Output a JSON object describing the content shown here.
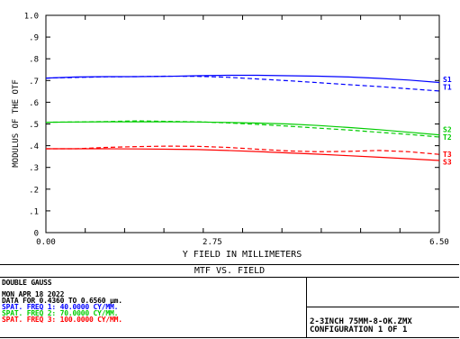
{
  "chart_data": {
    "type": "line",
    "title": "MTF VS. FIELD",
    "xlabel": "Y FIELD IN MILLIMETERS",
    "ylabel": "MODULUS OF THE OTF",
    "xlim": [
      0,
      6.5
    ],
    "ylim": [
      0,
      1.0
    ],
    "x_ticks": [
      "0.00",
      "2.75",
      "6.50"
    ],
    "y_ticks": [
      "0",
      ".1",
      ".2",
      ".3",
      ".4",
      ".5",
      ".6",
      ".7",
      ".8",
      ".9",
      "1.0"
    ],
    "grid": false,
    "series": [
      {
        "name": "S1",
        "color": "#0000ff",
        "dash": false,
        "x": [
          0,
          0.5,
          1.0,
          1.5,
          2.0,
          2.5,
          3.0,
          3.5,
          4.0,
          4.5,
          5.0,
          5.5,
          6.0,
          6.5
        ],
        "y": [
          0.711,
          0.716,
          0.718,
          0.718,
          0.719,
          0.722,
          0.724,
          0.724,
          0.722,
          0.72,
          0.716,
          0.71,
          0.702,
          0.691
        ]
      },
      {
        "name": "T1",
        "color": "#0000ff",
        "dash": true,
        "x": [
          0,
          0.5,
          1.0,
          1.5,
          2.0,
          2.5,
          3.0,
          3.5,
          4.0,
          4.5,
          5.0,
          5.5,
          6.0,
          6.5
        ],
        "y": [
          0.711,
          0.714,
          0.717,
          0.718,
          0.72,
          0.719,
          0.715,
          0.707,
          0.699,
          0.69,
          0.681,
          0.672,
          0.662,
          0.652
        ]
      },
      {
        "name": "S2",
        "color": "#00cc00",
        "dash": false,
        "x": [
          0,
          0.5,
          1.0,
          1.5,
          2.0,
          2.5,
          3.0,
          3.5,
          4.0,
          4.5,
          5.0,
          5.5,
          6.0,
          6.5
        ],
        "y": [
          0.508,
          0.509,
          0.51,
          0.51,
          0.51,
          0.509,
          0.507,
          0.504,
          0.5,
          0.493,
          0.484,
          0.474,
          0.462,
          0.45
        ]
      },
      {
        "name": "T2",
        "color": "#00cc00",
        "dash": true,
        "x": [
          0,
          0.5,
          1.0,
          1.5,
          2.0,
          2.5,
          3.0,
          3.5,
          4.0,
          4.5,
          5.0,
          5.5,
          6.0,
          6.5
        ],
        "y": [
          0.508,
          0.509,
          0.511,
          0.514,
          0.512,
          0.51,
          0.505,
          0.498,
          0.49,
          0.481,
          0.472,
          0.462,
          0.452,
          0.44
        ]
      },
      {
        "name": "T3",
        "color": "#ff0000",
        "dash": true,
        "x": [
          0,
          0.5,
          1.0,
          1.5,
          2.0,
          2.5,
          3.0,
          3.5,
          4.0,
          4.5,
          5.0,
          5.5,
          6.0,
          6.5
        ],
        "y": [
          0.386,
          0.386,
          0.392,
          0.396,
          0.398,
          0.397,
          0.392,
          0.384,
          0.376,
          0.372,
          0.374,
          0.378,
          0.372,
          0.36
        ]
      },
      {
        "name": "S3",
        "color": "#ff0000",
        "dash": false,
        "x": [
          0,
          0.5,
          1.0,
          1.5,
          2.0,
          2.5,
          3.0,
          3.5,
          4.0,
          4.5,
          5.0,
          5.5,
          6.0,
          6.5
        ],
        "y": [
          0.386,
          0.386,
          0.386,
          0.385,
          0.384,
          0.382,
          0.378,
          0.373,
          0.367,
          0.361,
          0.354,
          0.347,
          0.34,
          0.332
        ]
      }
    ],
    "series_labels": [
      {
        "text": "S1",
        "color": "#0000ff",
        "y": 0.705
      },
      {
        "text": "T1",
        "color": "#0000ff",
        "y": 0.67
      },
      {
        "text": "S2",
        "color": "#00cc00",
        "y": 0.475
      },
      {
        "text": "T2",
        "color": "#00cc00",
        "y": 0.44
      },
      {
        "text": "T3",
        "color": "#ff0000",
        "y": 0.36
      },
      {
        "text": "S3",
        "color": "#ff0000",
        "y": 0.325
      }
    ]
  },
  "footer": {
    "title": "MTF VS. FIELD",
    "lens_name": "DOUBLE GAUSS",
    "date": "MON APR 18 2022",
    "data_range": "DATA FOR 0.4360 TO 0.6560 μm.",
    "freq1": "SPAT. FREQ 1:  40.0000 CY/MM.",
    "freq2": "SPAT. FREQ 2:  70.0000 CY/MM.",
    "freq3": "SPAT. FREQ 3: 100.0000 CY/MM.",
    "freq1_color": "#0000ff",
    "freq2_color": "#00cc00",
    "freq3_color": "#ff0000",
    "file": "2-3INCH 75MM-8-OK.ZMX",
    "config": "CONFIGURATION 1 OF 1"
  }
}
